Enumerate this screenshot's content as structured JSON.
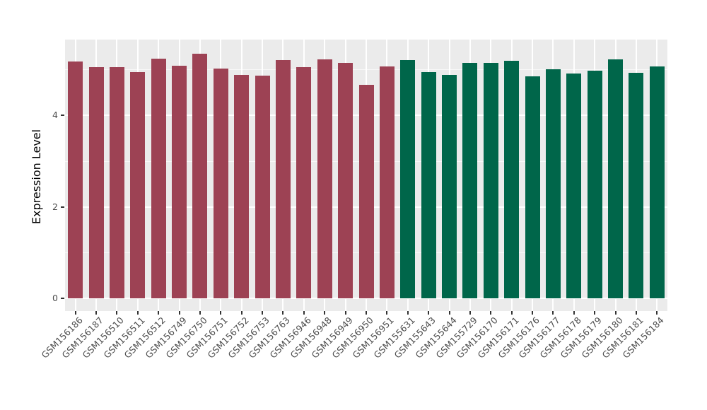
{
  "chart_data": {
    "type": "bar",
    "title": "",
    "xlabel": "",
    "ylabel": "Expression Level",
    "ylim": [
      0,
      5.65
    ],
    "yticks": [
      0,
      2,
      4
    ],
    "minor_yticks": [
      1,
      3,
      5
    ],
    "grid": "on",
    "legend_position": "none",
    "panel_background": "#EBEBEB",
    "gridline_color": "#FFFFFF",
    "axis_text_color": "#4D4D4D",
    "axis_title_color": "#000000",
    "tick_mark_color": "#333333",
    "bar_groups": [
      {
        "name": "maroon-group",
        "color": "#9D4254"
      },
      {
        "name": "green-group",
        "color": "#00664A"
      }
    ],
    "bars": [
      {
        "label": "GSM156186",
        "value": 5.17,
        "group": 0
      },
      {
        "label": "GSM156187",
        "value": 5.05,
        "group": 0
      },
      {
        "label": "GSM156510",
        "value": 5.05,
        "group": 0
      },
      {
        "label": "GSM156511",
        "value": 4.94,
        "group": 0
      },
      {
        "label": "GSM156512",
        "value": 5.23,
        "group": 0
      },
      {
        "label": "GSM156749",
        "value": 5.08,
        "group": 0
      },
      {
        "label": "GSM156750",
        "value": 5.35,
        "group": 0
      },
      {
        "label": "GSM156751",
        "value": 5.02,
        "group": 0
      },
      {
        "label": "GSM156752",
        "value": 4.88,
        "group": 0
      },
      {
        "label": "GSM156753",
        "value": 4.86,
        "group": 0
      },
      {
        "label": "GSM156763",
        "value": 5.2,
        "group": 0
      },
      {
        "label": "GSM156946",
        "value": 5.05,
        "group": 0
      },
      {
        "label": "GSM156948",
        "value": 5.22,
        "group": 0
      },
      {
        "label": "GSM156949",
        "value": 5.15,
        "group": 0
      },
      {
        "label": "GSM156950",
        "value": 4.66,
        "group": 0
      },
      {
        "label": "GSM156951",
        "value": 5.06,
        "group": 0
      },
      {
        "label": "GSM155631",
        "value": 5.2,
        "group": 1
      },
      {
        "label": "GSM155643",
        "value": 4.94,
        "group": 1
      },
      {
        "label": "GSM155644",
        "value": 4.88,
        "group": 1
      },
      {
        "label": "GSM155729",
        "value": 5.15,
        "group": 1
      },
      {
        "label": "GSM156170",
        "value": 5.15,
        "group": 1
      },
      {
        "label": "GSM156171",
        "value": 5.19,
        "group": 1
      },
      {
        "label": "GSM156176",
        "value": 4.85,
        "group": 1
      },
      {
        "label": "GSM156177",
        "value": 5.01,
        "group": 1
      },
      {
        "label": "GSM156178",
        "value": 4.91,
        "group": 1
      },
      {
        "label": "GSM156179",
        "value": 4.97,
        "group": 1
      },
      {
        "label": "GSM156180",
        "value": 5.22,
        "group": 1
      },
      {
        "label": "GSM156181",
        "value": 4.92,
        "group": 1
      },
      {
        "label": "GSM156184",
        "value": 5.06,
        "group": 1
      }
    ]
  }
}
